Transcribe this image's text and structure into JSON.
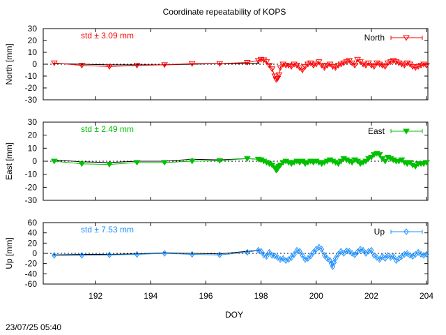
{
  "title": "Coordinate repeatability of KOPS",
  "xlabel": "DOY",
  "timestamp": "23/07/25 05:40",
  "x_ticks": [
    192,
    194,
    196,
    198,
    200,
    202,
    204
  ],
  "xlim": [
    190.1,
    204.05
  ],
  "chart_data": [
    {
      "type": "line",
      "ylabel": "North [mm]",
      "ylim": [
        -30,
        30
      ],
      "yticks": [
        -30,
        -20,
        -10,
        0,
        10,
        20,
        30
      ],
      "std_label": "std ± 3.09 mm",
      "color": "#ff0000",
      "marker": "open-triangle-down",
      "series": [
        {
          "name": "North",
          "x": [
            190.5,
            191.5,
            192.5,
            193.5,
            194.5,
            195.5,
            196.5,
            197.5,
            197.9,
            198.0,
            198.1,
            198.2,
            198.3,
            198.4,
            198.5,
            198.55,
            198.6,
            198.65,
            198.7,
            198.8,
            198.9,
            199.0,
            199.1,
            199.2,
            199.3,
            199.4,
            199.5,
            199.6,
            199.7,
            199.8,
            199.9,
            200.0,
            200.1,
            200.2,
            200.3,
            200.4,
            200.5,
            200.6,
            200.7,
            200.8,
            200.9,
            201.0,
            201.1,
            201.2,
            201.3,
            201.4,
            201.5,
            201.6,
            201.7,
            201.8,
            201.9,
            202.0,
            202.1,
            202.2,
            202.3,
            202.4,
            202.5,
            202.6,
            202.7,
            202.8,
            202.9,
            203.0,
            203.1,
            203.2,
            203.3,
            203.4,
            203.5,
            203.6,
            203.7,
            203.8,
            203.9,
            204.0
          ],
          "y": [
            1,
            -1,
            -2,
            -1,
            -0.5,
            0.5,
            0.5,
            1.5,
            3,
            4,
            3.5,
            2,
            -1,
            -4,
            -10,
            -13,
            -12,
            -9,
            -3,
            0,
            -1,
            -1,
            -2,
            0,
            -1,
            -3,
            -5,
            -2,
            0,
            1,
            -1,
            0,
            2,
            -1,
            -3,
            -1,
            0,
            -2,
            -3,
            -1,
            0,
            1,
            2,
            3,
            1,
            -1,
            4,
            2,
            0,
            -1,
            1,
            -1,
            -2,
            1,
            0,
            -1,
            -2,
            1,
            2,
            3,
            2,
            1,
            0,
            -1,
            1,
            0,
            -2,
            -3,
            -2,
            -1,
            0,
            -1
          ]
        },
        {
          "name": "",
          "x": [
            190.5,
            191.5,
            192.5,
            193.5,
            194.5,
            195.5,
            196.5,
            197.5,
            197.9
          ],
          "y": [
            0.5,
            0,
            -0.5,
            -0.5,
            -0.5,
            0,
            0.5,
            0.5,
            1
          ]
        }
      ]
    },
    {
      "type": "line",
      "ylabel": "East [mm]",
      "ylim": [
        -30,
        30
      ],
      "yticks": [
        -30,
        -20,
        -10,
        0,
        10,
        20,
        30
      ],
      "std_label": "std ± 2.49 mm",
      "color": "#00c000",
      "marker": "filled-triangle-down",
      "series": [
        {
          "name": "East",
          "x": [
            190.5,
            191.5,
            192.5,
            193.5,
            194.5,
            195.5,
            196.5,
            197.5,
            197.9,
            198.0,
            198.1,
            198.2,
            198.3,
            198.4,
            198.5,
            198.55,
            198.6,
            198.65,
            198.7,
            198.8,
            198.9,
            199.0,
            199.1,
            199.2,
            199.3,
            199.4,
            199.5,
            199.6,
            199.7,
            199.8,
            199.9,
            200.0,
            200.1,
            200.2,
            200.3,
            200.4,
            200.5,
            200.6,
            200.7,
            200.8,
            200.9,
            201.0,
            201.1,
            201.2,
            201.3,
            201.4,
            201.5,
            201.6,
            201.7,
            201.8,
            201.9,
            202.0,
            202.1,
            202.2,
            202.3,
            202.4,
            202.5,
            202.6,
            202.7,
            202.8,
            202.9,
            203.0,
            203.1,
            203.2,
            203.3,
            203.4,
            203.5,
            203.6,
            203.7,
            203.8,
            203.9,
            204.0
          ],
          "y": [
            0,
            -2,
            -2.5,
            -1,
            -1,
            0,
            0.5,
            2,
            1.5,
            1,
            0,
            -1,
            -2,
            -3,
            -5,
            -7,
            -6,
            -4,
            -3,
            -1,
            0,
            -1,
            -2,
            -1,
            0,
            -1,
            0,
            -2,
            -1,
            0,
            -1,
            0,
            -1,
            -2,
            -1,
            0,
            1,
            0,
            -1,
            -2,
            0,
            2,
            1,
            0,
            -1,
            1,
            0,
            -2,
            -1,
            0,
            2,
            3,
            5,
            6,
            5,
            2,
            0,
            3,
            2,
            1,
            0,
            0,
            1,
            -1,
            -2,
            -1,
            -3,
            -4,
            -2,
            -2,
            -2,
            -1
          ]
        },
        {
          "name": "",
          "x": [
            190.5,
            191.5,
            192.5,
            193.5,
            194.5,
            195.5,
            196.5,
            197.5,
            197.9
          ],
          "y": [
            1,
            -0.5,
            -1,
            0,
            0,
            1.5,
            1,
            2,
            1.5
          ]
        }
      ]
    },
    {
      "type": "line",
      "ylabel": "Up [mm]",
      "ylim": [
        -60,
        60
      ],
      "yticks": [
        -60,
        -40,
        -20,
        0,
        20,
        40,
        60
      ],
      "std_label": "std ± 7.53 mm",
      "color": "#1e90ff",
      "marker": "open-diamond",
      "series": [
        {
          "name": "Up",
          "x": [
            190.5,
            191.5,
            192.5,
            193.5,
            194.5,
            195.5,
            196.5,
            197.5,
            197.9,
            198.0,
            198.1,
            198.2,
            198.3,
            198.4,
            198.5,
            198.6,
            198.7,
            198.8,
            198.9,
            199.0,
            199.1,
            199.2,
            199.3,
            199.4,
            199.5,
            199.6,
            199.7,
            199.8,
            199.9,
            200.0,
            200.1,
            200.2,
            200.3,
            200.4,
            200.5,
            200.55,
            200.6,
            200.65,
            200.7,
            200.8,
            200.9,
            201.0,
            201.1,
            201.2,
            201.3,
            201.4,
            201.5,
            201.6,
            201.7,
            201.8,
            201.9,
            202.0,
            202.1,
            202.2,
            202.3,
            202.4,
            202.5,
            202.6,
            202.7,
            202.8,
            202.9,
            203.0,
            203.1,
            203.2,
            203.3,
            203.4,
            203.5,
            203.6,
            203.7,
            203.8,
            203.9,
            204.0
          ],
          "y": [
            -4,
            -4,
            -3,
            -2,
            0,
            -2,
            -3,
            2,
            6,
            4,
            -3,
            -6,
            2,
            -4,
            -5,
            -8,
            -12,
            -10,
            -14,
            -12,
            -8,
            -2,
            6,
            4,
            -4,
            -12,
            -10,
            -5,
            2,
            8,
            12,
            8,
            -4,
            -10,
            -14,
            -20,
            -26,
            -18,
            -10,
            -2,
            4,
            0,
            5,
            4,
            0,
            -3,
            3,
            8,
            6,
            0,
            4,
            6,
            -4,
            -8,
            -12,
            -6,
            -10,
            -4,
            -8,
            -6,
            -14,
            -10,
            -6,
            -2,
            0,
            -4,
            -6,
            -2,
            2,
            -2,
            -4,
            -2
          ]
        },
        {
          "name": "",
          "x": [
            190.5,
            191.5,
            192.5,
            193.5,
            194.5,
            195.5,
            196.5,
            197.5,
            197.9
          ],
          "y": [
            -3,
            -2,
            -2,
            -1,
            1,
            0,
            -1,
            4,
            6
          ]
        }
      ]
    }
  ]
}
